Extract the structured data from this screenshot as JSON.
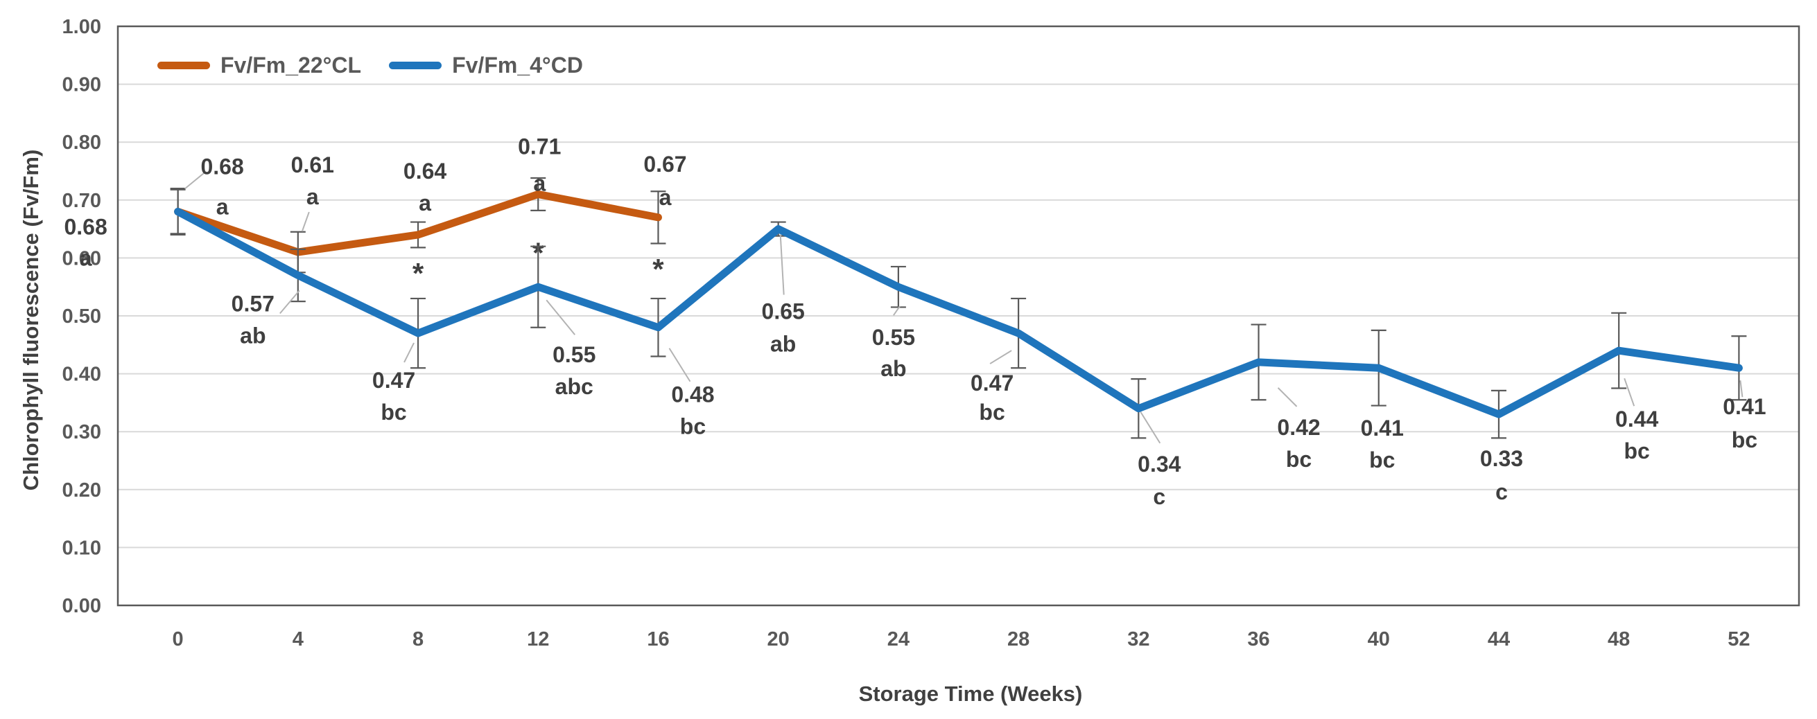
{
  "chart_data": {
    "type": "line",
    "title": "",
    "xlabel": "Storage Time (Weeks)",
    "ylabel": "Chlorophyll fluorescence (Fv/Fm)",
    "x": [
      0,
      4,
      8,
      12,
      16,
      20,
      24,
      28,
      32,
      36,
      40,
      44,
      48,
      52
    ],
    "ylim": [
      0,
      1
    ],
    "y_ticks": [
      "0.00",
      "0.10",
      "0.20",
      "0.30",
      "0.40",
      "0.50",
      "0.60",
      "0.70",
      "0.80",
      "0.90",
      "1.00"
    ],
    "grid": "horizontal",
    "legend_position": "top-left-inside",
    "colors": {
      "series_22cl": "#C55A11",
      "series_4cd": "#1F75BC",
      "grid": "#D9D9D9",
      "axis": "#595959",
      "label_text": "#3F3F3F",
      "leader": "#B3B3B3"
    },
    "series": [
      {
        "id": "fvfm-22cl",
        "name": "Fv/Fm_22°CL",
        "color": "#C55A11",
        "values": [
          0.68,
          0.61,
          0.64,
          0.71,
          0.67
        ],
        "errors": [
          0.04,
          0.035,
          0.022,
          0.028,
          0.045
        ],
        "labels": [
          {
            "value": "0.68",
            "letters": "a",
            "dx": 64,
            "dyv": -65,
            "dyl": -7,
            "leader": [
              10,
              -33,
              38,
              -56
            ]
          },
          {
            "value": "0.61",
            "letters": "a",
            "dx": 21,
            "dyv": -126,
            "dyl": -80,
            "leader": [
              16,
              -58,
              6,
              -30
            ]
          },
          {
            "value": "0.64",
            "letters": "a",
            "dx": 10,
            "dyv": -92,
            "dyl": -46,
            "star_dy": 54
          },
          {
            "value": "0.71",
            "letters": "a",
            "dx": 2,
            "dyv": -69,
            "dyl": -16,
            "star_dy": 83
          },
          {
            "value": "0.67",
            "letters": "a",
            "dx": 10,
            "dyv": -77,
            "dyl": -29,
            "star_dy": 73
          }
        ]
      },
      {
        "id": "fvfm-4cd",
        "name": "Fv/Fm_4°CD",
        "color": "#1F75BC",
        "values": [
          0.68,
          0.57,
          0.47,
          0.55,
          0.48,
          0.65,
          0.55,
          0.47,
          0.34,
          0.42,
          0.41,
          0.33,
          0.44,
          0.41
        ],
        "errors": [
          0.038,
          0.045,
          0.06,
          0.07,
          0.05,
          0.012,
          0.035,
          0.06,
          0.051,
          0.065,
          0.065,
          0.041,
          0.065,
          0.055
        ],
        "labels": [
          {
            "value": "0.68",
            "letters": "a",
            "dx": -133,
            "dyv": 22,
            "dyl": 67
          },
          {
            "value": "0.57",
            "letters": "ab",
            "dx": -65,
            "dyv": 41,
            "dyl": 87,
            "leader": [
              -26,
              55,
              2,
              22
            ]
          },
          {
            "value": "0.47",
            "letters": "bc",
            "dx": -35,
            "dyv": 68,
            "dyl": 114,
            "leader": [
              -6,
              14,
              -20,
              42
            ]
          },
          {
            "value": "0.55",
            "letters": "abc",
            "dx": 52,
            "dyv": 98,
            "dyl": 144,
            "leader": [
              12,
              19,
              53,
              69
            ]
          },
          {
            "value": "0.48",
            "letters": "bc",
            "dx": 50,
            "dyv": 97,
            "dyl": 143,
            "leader": [
              16,
              30,
              46,
              78
            ]
          },
          {
            "value": "0.65",
            "letters": "ab",
            "dx": 7,
            "dyv": 119,
            "dyl": 166,
            "leader": [
              3,
              8,
              8,
              95
            ]
          },
          {
            "value": "0.55",
            "letters": "ab",
            "dx": -7,
            "dyv": 73,
            "dyl": 118,
            "leader": [
              2,
              28,
              -7,
              41
            ]
          },
          {
            "value": "0.47",
            "letters": "bc",
            "dx": -38,
            "dyv": 72,
            "dyl": 114,
            "leader": [
              -10,
              25,
              -41,
              44
            ]
          },
          {
            "value": "0.34",
            "letters": "c",
            "dx": 30,
            "dyv": 80,
            "dyl": 127,
            "leader": [
              3,
              5,
              31,
              50
            ]
          },
          {
            "value": "0.42",
            "letters": "bc",
            "dx": 58,
            "dyv": 94,
            "dyl": 140,
            "leader": [
              28,
              37,
              55,
              64
            ]
          },
          {
            "value": "0.41",
            "letters": "bc",
            "dx": 5,
            "dyv": 87,
            "dyl": 133
          },
          {
            "value": "0.33",
            "letters": "c",
            "dx": 4,
            "dyv": 64,
            "dyl": 112
          },
          {
            "value": "0.44",
            "letters": "bc",
            "dx": 26,
            "dyv": 99,
            "dyl": 145,
            "leader": [
              8,
              40,
              22,
              80
            ]
          },
          {
            "value": "0.41",
            "letters": "bc",
            "dx": 8,
            "dyv": 56,
            "dyl": 104,
            "leader": [
              2,
              18,
              5,
              42
            ]
          }
        ]
      }
    ]
  }
}
